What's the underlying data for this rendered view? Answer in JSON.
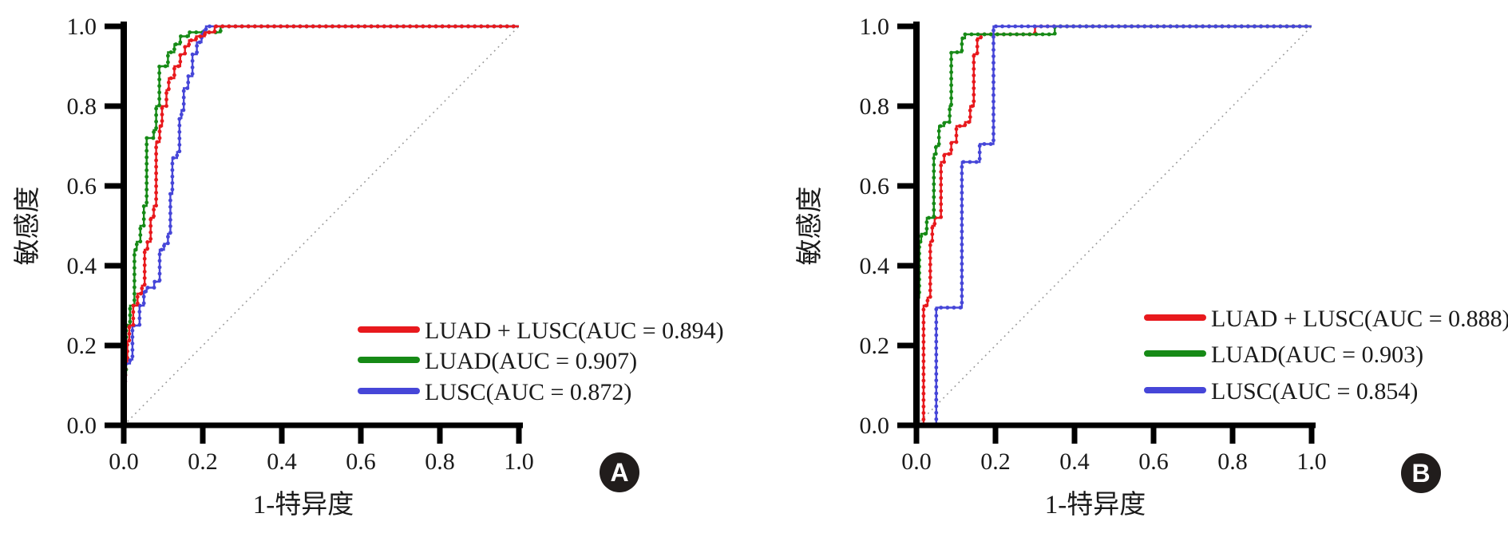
{
  "figure": {
    "background": "#ffffff",
    "axis_color": "#000000",
    "tick_label_color": "#1a1a1a",
    "diagonal_color": "#999999",
    "badge_bg": "#211d1c",
    "badge_text_color": "#ffffff",
    "panels": [
      {
        "badge": "A",
        "xlabel": "1-特异度",
        "ylabel": "敏感度",
        "x_tick_labels": [
          "0.0",
          "0.2",
          "0.4",
          "0.6",
          "0.8",
          "1.0"
        ],
        "y_tick_labels": [
          "0.0",
          "0.2",
          "0.4",
          "0.6",
          "0.8",
          "1.0"
        ],
        "legend": [
          {
            "label": "LUAD + LUSC(AUC = 0.894)",
            "color": "#e8191d"
          },
          {
            "label": "LUAD(AUC = 0.907)",
            "color": "#168a16"
          },
          {
            "label": "LUSC(AUC = 0.872)",
            "color": "#4646d8"
          }
        ]
      },
      {
        "badge": "B",
        "xlabel": "1-特异度",
        "ylabel": "敏感度",
        "x_tick_labels": [
          "0.0",
          "0.2",
          "0.4",
          "0.6",
          "0.8",
          "1.0"
        ],
        "y_tick_labels": [
          "0.0",
          "0.2",
          "0.4",
          "0.6",
          "0.8",
          "1.0"
        ],
        "legend": [
          {
            "label": "LUAD + LUSC(AUC = 0.888)",
            "color": "#e8191d"
          },
          {
            "label": "LUAD(AUC = 0.903)",
            "color": "#168a16"
          },
          {
            "label": "LUSC(AUC = 0.854)",
            "color": "#4646d8"
          }
        ]
      }
    ]
  },
  "chart_data": [
    {
      "type": "line",
      "subtype": "roc-step-curves",
      "panel": "A",
      "xlabel": "1-特异度",
      "ylabel": "敏感度",
      "xlim": [
        0,
        1
      ],
      "ylim": [
        0,
        1
      ],
      "x_ticks": [
        0.0,
        0.2,
        0.4,
        0.6,
        0.8,
        1.0
      ],
      "y_ticks": [
        0.0,
        0.2,
        0.4,
        0.6,
        0.8,
        1.0
      ],
      "grid": false,
      "diagonal_reference": true,
      "legend_position": "lower right",
      "draw_order": [
        1,
        2,
        0
      ],
      "series": [
        {
          "name": "LUAD + LUSC",
          "auc": 0.894,
          "color": "#e8191d",
          "points": [
            [
              0,
              0
            ],
            [
              0,
              0.11
            ],
            [
              0.004,
              0.11
            ],
            [
              0.004,
              0.16
            ],
            [
              0.009,
              0.16
            ],
            [
              0.009,
              0.21
            ],
            [
              0.014,
              0.21
            ],
            [
              0.014,
              0.25
            ],
            [
              0.024,
              0.25
            ],
            [
              0.024,
              0.3
            ],
            [
              0.035,
              0.3
            ],
            [
              0.035,
              0.33
            ],
            [
              0.046,
              0.33
            ],
            [
              0.046,
              0.35
            ],
            [
              0.053,
              0.35
            ],
            [
              0.053,
              0.44
            ],
            [
              0.06,
              0.44
            ],
            [
              0.06,
              0.46
            ],
            [
              0.068,
              0.46
            ],
            [
              0.068,
              0.52
            ],
            [
              0.076,
              0.52
            ],
            [
              0.076,
              0.55
            ],
            [
              0.082,
              0.55
            ],
            [
              0.082,
              0.71
            ],
            [
              0.091,
              0.71
            ],
            [
              0.091,
              0.75
            ],
            [
              0.097,
              0.75
            ],
            [
              0.097,
              0.8
            ],
            [
              0.108,
              0.8
            ],
            [
              0.108,
              0.84
            ],
            [
              0.114,
              0.84
            ],
            [
              0.114,
              0.87
            ],
            [
              0.128,
              0.87
            ],
            [
              0.128,
              0.9
            ],
            [
              0.143,
              0.9
            ],
            [
              0.143,
              0.93
            ],
            [
              0.155,
              0.93
            ],
            [
              0.155,
              0.95
            ],
            [
              0.165,
              0.95
            ],
            [
              0.165,
              0.965
            ],
            [
              0.183,
              0.965
            ],
            [
              0.183,
              0.975
            ],
            [
              0.205,
              0.975
            ],
            [
              0.205,
              0.985
            ],
            [
              0.23,
              0.985
            ],
            [
              0.23,
              1
            ],
            [
              1,
              1
            ]
          ]
        },
        {
          "name": "LUAD",
          "auc": 0.907,
          "color": "#168a16",
          "points": [
            [
              0,
              0
            ],
            [
              0,
              0.13
            ],
            [
              0.006,
              0.13
            ],
            [
              0.006,
              0.25
            ],
            [
              0.016,
              0.25
            ],
            [
              0.016,
              0.3
            ],
            [
              0.027,
              0.3
            ],
            [
              0.027,
              0.44
            ],
            [
              0.033,
              0.44
            ],
            [
              0.033,
              0.46
            ],
            [
              0.042,
              0.46
            ],
            [
              0.042,
              0.5
            ],
            [
              0.051,
              0.5
            ],
            [
              0.051,
              0.55
            ],
            [
              0.058,
              0.55
            ],
            [
              0.058,
              0.72
            ],
            [
              0.076,
              0.72
            ],
            [
              0.076,
              0.74
            ],
            [
              0.082,
              0.74
            ],
            [
              0.082,
              0.8
            ],
            [
              0.09,
              0.8
            ],
            [
              0.09,
              0.9
            ],
            [
              0.112,
              0.9
            ],
            [
              0.112,
              0.935
            ],
            [
              0.128,
              0.935
            ],
            [
              0.128,
              0.955
            ],
            [
              0.143,
              0.955
            ],
            [
              0.143,
              0.975
            ],
            [
              0.165,
              0.975
            ],
            [
              0.165,
              0.985
            ],
            [
              0.245,
              0.985
            ],
            [
              0.245,
              1
            ],
            [
              1,
              1
            ]
          ]
        },
        {
          "name": "LUSC",
          "auc": 0.872,
          "color": "#4646d8",
          "points": [
            [
              0,
              0
            ],
            [
              0,
              0.11
            ],
            [
              0.004,
              0.11
            ],
            [
              0.004,
              0.155
            ],
            [
              0.016,
              0.155
            ],
            [
              0.016,
              0.165
            ],
            [
              0.022,
              0.165
            ],
            [
              0.022,
              0.25
            ],
            [
              0.04,
              0.25
            ],
            [
              0.04,
              0.3
            ],
            [
              0.051,
              0.3
            ],
            [
              0.051,
              0.335
            ],
            [
              0.058,
              0.335
            ],
            [
              0.058,
              0.345
            ],
            [
              0.077,
              0.345
            ],
            [
              0.077,
              0.36
            ],
            [
              0.091,
              0.36
            ],
            [
              0.091,
              0.44
            ],
            [
              0.102,
              0.44
            ],
            [
              0.102,
              0.455
            ],
            [
              0.112,
              0.455
            ],
            [
              0.112,
              0.48
            ],
            [
              0.118,
              0.48
            ],
            [
              0.118,
              0.58
            ],
            [
              0.123,
              0.58
            ],
            [
              0.123,
              0.67
            ],
            [
              0.135,
              0.67
            ],
            [
              0.135,
              0.685
            ],
            [
              0.141,
              0.685
            ],
            [
              0.141,
              0.77
            ],
            [
              0.146,
              0.77
            ],
            [
              0.146,
              0.79
            ],
            [
              0.152,
              0.79
            ],
            [
              0.152,
              0.845
            ],
            [
              0.163,
              0.845
            ],
            [
              0.163,
              0.875
            ],
            [
              0.174,
              0.875
            ],
            [
              0.174,
              0.93
            ],
            [
              0.185,
              0.93
            ],
            [
              0.185,
              0.96
            ],
            [
              0.197,
              0.96
            ],
            [
              0.197,
              0.98
            ],
            [
              0.202,
              0.98
            ],
            [
              0.202,
              0.99
            ],
            [
              0.208,
              0.99
            ],
            [
              0.208,
              1
            ],
            [
              1,
              1
            ]
          ]
        }
      ]
    },
    {
      "type": "line",
      "subtype": "roc-step-curves",
      "panel": "B",
      "xlabel": "1-特异度",
      "ylabel": "敏感度",
      "xlim": [
        0,
        1
      ],
      "ylim": [
        0,
        1
      ],
      "x_ticks": [
        0.0,
        0.2,
        0.4,
        0.6,
        0.8,
        1.0
      ],
      "y_ticks": [
        0.0,
        0.2,
        0.4,
        0.6,
        0.8,
        1.0
      ],
      "grid": false,
      "diagonal_reference": true,
      "legend_position": "lower right",
      "draw_order": [
        0,
        1,
        2
      ],
      "series": [
        {
          "name": "LUAD + LUSC",
          "auc": 0.888,
          "color": "#e8191d",
          "points": [
            [
              0,
              0
            ],
            [
              0.018,
              0
            ],
            [
              0.018,
              0.3
            ],
            [
              0.028,
              0.3
            ],
            [
              0.028,
              0.32
            ],
            [
              0.035,
              0.32
            ],
            [
              0.035,
              0.46
            ],
            [
              0.04,
              0.46
            ],
            [
              0.04,
              0.5
            ],
            [
              0.046,
              0.5
            ],
            [
              0.046,
              0.52
            ],
            [
              0.062,
              0.52
            ],
            [
              0.062,
              0.66
            ],
            [
              0.07,
              0.66
            ],
            [
              0.07,
              0.68
            ],
            [
              0.088,
              0.68
            ],
            [
              0.088,
              0.71
            ],
            [
              0.101,
              0.71
            ],
            [
              0.101,
              0.75
            ],
            [
              0.123,
              0.75
            ],
            [
              0.123,
              0.76
            ],
            [
              0.136,
              0.76
            ],
            [
              0.136,
              0.8
            ],
            [
              0.145,
              0.8
            ],
            [
              0.145,
              0.93
            ],
            [
              0.154,
              0.93
            ],
            [
              0.154,
              0.97
            ],
            [
              0.163,
              0.97
            ],
            [
              0.163,
              0.98
            ],
            [
              0.3,
              0.98
            ],
            [
              0.3,
              1
            ],
            [
              1,
              1
            ]
          ]
        },
        {
          "name": "LUAD",
          "auc": 0.903,
          "color": "#168a16",
          "points": [
            [
              0,
              0
            ],
            [
              0,
              0.32
            ],
            [
              0.007,
              0.32
            ],
            [
              0.007,
              0.46
            ],
            [
              0.012,
              0.46
            ],
            [
              0.012,
              0.48
            ],
            [
              0.026,
              0.48
            ],
            [
              0.026,
              0.52
            ],
            [
              0.044,
              0.52
            ],
            [
              0.044,
              0.68
            ],
            [
              0.049,
              0.68
            ],
            [
              0.049,
              0.7
            ],
            [
              0.057,
              0.7
            ],
            [
              0.057,
              0.75
            ],
            [
              0.07,
              0.75
            ],
            [
              0.07,
              0.76
            ],
            [
              0.084,
              0.76
            ],
            [
              0.084,
              0.8
            ],
            [
              0.088,
              0.8
            ],
            [
              0.088,
              0.935
            ],
            [
              0.115,
              0.935
            ],
            [
              0.115,
              0.97
            ],
            [
              0.123,
              0.97
            ],
            [
              0.123,
              0.98
            ],
            [
              0.35,
              0.98
            ],
            [
              0.35,
              1
            ],
            [
              1,
              1
            ]
          ]
        },
        {
          "name": "LUSC",
          "auc": 0.854,
          "color": "#4646d8",
          "points": [
            [
              0,
              0
            ],
            [
              0.05,
              0
            ],
            [
              0.05,
              0.295
            ],
            [
              0.115,
              0.295
            ],
            [
              0.115,
              0.66
            ],
            [
              0.16,
              0.66
            ],
            [
              0.16,
              0.705
            ],
            [
              0.195,
              0.705
            ],
            [
              0.195,
              1
            ],
            [
              1,
              1
            ]
          ]
        }
      ]
    }
  ]
}
